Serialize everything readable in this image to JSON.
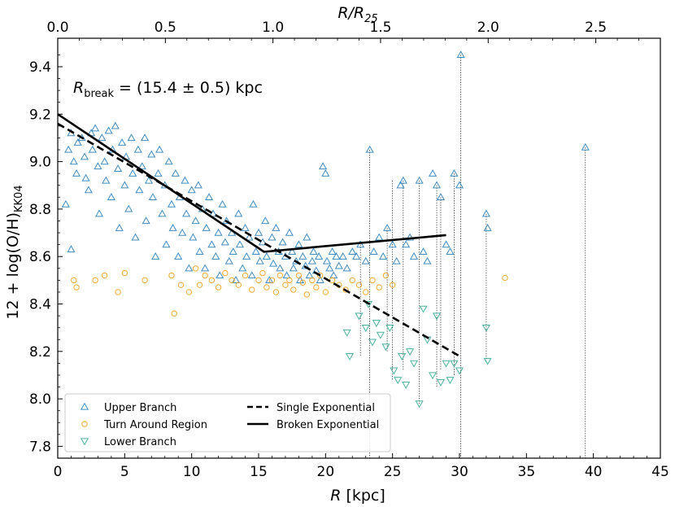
{
  "chart_data": {
    "type": "scatter",
    "xlabel_main": "R",
    "xlabel_unit": " [kpc]",
    "xlabel_top_main": "R/R",
    "xlabel_top_sub": "25",
    "ylabel_main": "12 + log(O/H)",
    "ylabel_sub": "KK04",
    "annotation_main": "R",
    "annotation_sub": "break",
    "annotation_value": " = (15.4 ± 0.5) kpc",
    "xlim": [
      0,
      45
    ],
    "ylim": [
      7.75,
      9.52
    ],
    "top_xlim": [
      0,
      2.8
    ],
    "x_ticks": [
      0,
      5,
      10,
      15,
      20,
      25,
      30,
      35,
      40,
      45
    ],
    "x_tick_labels": [
      "0",
      "5",
      "10",
      "15",
      "20",
      "25",
      "30",
      "35",
      "40",
      "45"
    ],
    "y_ticks": [
      7.8,
      8.0,
      8.2,
      8.4,
      8.6,
      8.8,
      9.0,
      9.2,
      9.4
    ],
    "y_tick_labels": [
      "7.8",
      "8.0",
      "8.2",
      "8.4",
      "8.6",
      "8.8",
      "9.0",
      "9.2",
      "9.4"
    ],
    "top_ticks": [
      0.0,
      0.5,
      1.0,
      1.5,
      2.0,
      2.5
    ],
    "top_tick_labels": [
      "0.0",
      "0.5",
      "1.0",
      "1.5",
      "2.0",
      "2.5"
    ],
    "colors": {
      "upper": "#1f77b4",
      "turn": "#f0a020",
      "lower": "#2ca58d",
      "line": "#000000"
    },
    "series": [
      {
        "name": "Upper Branch",
        "marker": "triangle-up",
        "points": [
          [
            0.6,
            8.82
          ],
          [
            0.8,
            9.05
          ],
          [
            1.0,
            8.63
          ],
          [
            1.0,
            9.12
          ],
          [
            1.2,
            9.0
          ],
          [
            1.4,
            8.95
          ],
          [
            1.5,
            9.08
          ],
          [
            1.8,
            9.1
          ],
          [
            2.0,
            9.02
          ],
          [
            2.1,
            8.93
          ],
          [
            2.3,
            8.88
          ],
          [
            2.5,
            9.12
          ],
          [
            2.6,
            9.05
          ],
          [
            2.8,
            9.14
          ],
          [
            3.0,
            8.98
          ],
          [
            3.1,
            8.78
          ],
          [
            3.3,
            9.1
          ],
          [
            3.5,
            9.0
          ],
          [
            3.6,
            8.92
          ],
          [
            3.8,
            9.13
          ],
          [
            4.0,
            8.85
          ],
          [
            4.1,
            9.05
          ],
          [
            4.3,
            9.15
          ],
          [
            4.5,
            8.97
          ],
          [
            4.6,
            8.72
          ],
          [
            4.8,
            9.08
          ],
          [
            5.0,
            8.9
          ],
          [
            5.1,
            9.02
          ],
          [
            5.3,
            8.8
          ],
          [
            5.5,
            9.1
          ],
          [
            5.6,
            8.95
          ],
          [
            5.8,
            8.68
          ],
          [
            6.0,
            9.05
          ],
          [
            6.1,
            8.88
          ],
          [
            6.3,
            8.98
          ],
          [
            6.5,
            9.1
          ],
          [
            6.6,
            8.75
          ],
          [
            6.8,
            8.92
          ],
          [
            7.0,
            9.03
          ],
          [
            7.1,
            8.85
          ],
          [
            7.3,
            8.6
          ],
          [
            7.5,
            8.95
          ],
          [
            7.6,
            9.05
          ],
          [
            7.8,
            8.78
          ],
          [
            8.0,
            8.9
          ],
          [
            8.1,
            8.65
          ],
          [
            8.3,
            9.0
          ],
          [
            8.5,
            8.82
          ],
          [
            8.6,
            8.72
          ],
          [
            8.8,
            8.95
          ],
          [
            9.0,
            8.6
          ],
          [
            9.1,
            8.85
          ],
          [
            9.3,
            8.7
          ],
          [
            9.5,
            8.92
          ],
          [
            9.6,
            8.78
          ],
          [
            9.8,
            8.55
          ],
          [
            10.0,
            8.88
          ],
          [
            10.1,
            8.68
          ],
          [
            10.3,
            8.75
          ],
          [
            10.5,
            8.9
          ],
          [
            10.6,
            8.62
          ],
          [
            10.8,
            8.8
          ],
          [
            11.0,
            8.55
          ],
          [
            11.1,
            8.72
          ],
          [
            11.3,
            8.85
          ],
          [
            11.5,
            8.65
          ],
          [
            11.6,
            8.78
          ],
          [
            11.8,
            8.6
          ],
          [
            12.0,
            8.7
          ],
          [
            12.1,
            8.52
          ],
          [
            12.3,
            8.82
          ],
          [
            12.5,
            8.66
          ],
          [
            12.6,
            8.75
          ],
          [
            12.8,
            8.58
          ],
          [
            13.0,
            8.7
          ],
          [
            13.1,
            8.62
          ],
          [
            13.3,
            8.5
          ],
          [
            13.5,
            8.78
          ],
          [
            13.6,
            8.65
          ],
          [
            13.8,
            8.55
          ],
          [
            14.0,
            8.72
          ],
          [
            14.1,
            8.6
          ],
          [
            14.3,
            8.68
          ],
          [
            14.5,
            8.52
          ],
          [
            14.6,
            8.82
          ],
          [
            14.8,
            8.62
          ],
          [
            15.0,
            8.7
          ],
          [
            15.1,
            8.58
          ],
          [
            15.3,
            8.66
          ],
          [
            15.5,
            8.75
          ],
          [
            15.6,
            8.6
          ],
          [
            15.8,
            8.5
          ],
          [
            16.0,
            8.68
          ],
          [
            16.1,
            8.57
          ],
          [
            16.3,
            8.72
          ],
          [
            16.5,
            8.62
          ],
          [
            16.6,
            8.55
          ],
          [
            16.8,
            8.66
          ],
          [
            17.0,
            8.6
          ],
          [
            17.1,
            8.52
          ],
          [
            17.3,
            8.7
          ],
          [
            17.5,
            8.62
          ],
          [
            17.6,
            8.55
          ],
          [
            17.8,
            8.58
          ],
          [
            18.0,
            8.65
          ],
          [
            18.1,
            8.5
          ],
          [
            18.3,
            8.6
          ],
          [
            18.5,
            8.56
          ],
          [
            18.6,
            8.68
          ],
          [
            18.8,
            8.52
          ],
          [
            19.0,
            8.58
          ],
          [
            19.1,
            8.62
          ],
          [
            19.3,
            8.54
          ],
          [
            19.5,
            8.6
          ],
          [
            19.6,
            8.5
          ],
          [
            19.8,
            8.98
          ],
          [
            20.0,
            8.95
          ],
          [
            20.1,
            8.58
          ],
          [
            20.3,
            8.55
          ],
          [
            20.5,
            8.62
          ],
          [
            20.6,
            8.52
          ],
          [
            20.8,
            8.6
          ],
          [
            21.0,
            8.56
          ],
          [
            21.3,
            8.6
          ],
          [
            21.6,
            8.55
          ],
          [
            22.0,
            8.62
          ],
          [
            22.3,
            8.6
          ],
          [
            22.6,
            8.65
          ],
          [
            23.0,
            8.58
          ],
          [
            23.3,
            9.05
          ],
          [
            23.6,
            8.62
          ],
          [
            24.0,
            8.68
          ],
          [
            24.3,
            8.6
          ],
          [
            24.6,
            8.72
          ],
          [
            25.0,
            8.65
          ],
          [
            25.3,
            8.58
          ],
          [
            25.6,
            8.9
          ],
          [
            25.8,
            8.92
          ],
          [
            26.0,
            8.65
          ],
          [
            26.3,
            8.68
          ],
          [
            26.6,
            8.6
          ],
          [
            27.0,
            8.92
          ],
          [
            27.3,
            8.62
          ],
          [
            27.6,
            8.58
          ],
          [
            28.0,
            8.95
          ],
          [
            28.3,
            8.9
          ],
          [
            28.6,
            8.85
          ],
          [
            29.0,
            8.65
          ],
          [
            29.3,
            8.62
          ],
          [
            29.6,
            8.95
          ],
          [
            30.0,
            8.9
          ],
          [
            30.1,
            9.45
          ],
          [
            32.0,
            8.78
          ],
          [
            32.1,
            8.72
          ],
          [
            39.4,
            9.06
          ]
        ]
      },
      {
        "name": "Turn Around Region",
        "marker": "circle",
        "points": [
          [
            1.2,
            8.5
          ],
          [
            1.4,
            8.47
          ],
          [
            2.8,
            8.5
          ],
          [
            3.5,
            8.52
          ],
          [
            4.5,
            8.45
          ],
          [
            5.0,
            8.53
          ],
          [
            6.5,
            8.5
          ],
          [
            8.5,
            8.52
          ],
          [
            8.7,
            8.36
          ],
          [
            9.2,
            8.48
          ],
          [
            9.8,
            8.45
          ],
          [
            10.3,
            8.55
          ],
          [
            10.6,
            8.48
          ],
          [
            11.0,
            8.52
          ],
          [
            11.5,
            8.5
          ],
          [
            12.0,
            8.47
          ],
          [
            12.5,
            8.53
          ],
          [
            13.0,
            8.5
          ],
          [
            13.5,
            8.48
          ],
          [
            14.0,
            8.52
          ],
          [
            14.5,
            8.46
          ],
          [
            15.0,
            8.5
          ],
          [
            15.3,
            8.53
          ],
          [
            15.6,
            8.47
          ],
          [
            16.0,
            8.5
          ],
          [
            16.3,
            8.45
          ],
          [
            16.6,
            8.52
          ],
          [
            17.0,
            8.48
          ],
          [
            17.3,
            8.5
          ],
          [
            17.6,
            8.46
          ],
          [
            18.0,
            8.52
          ],
          [
            18.3,
            8.49
          ],
          [
            18.6,
            8.44
          ],
          [
            19.0,
            8.5
          ],
          [
            19.3,
            8.47
          ],
          [
            19.6,
            8.52
          ],
          [
            20.0,
            8.45
          ],
          [
            20.5,
            8.5
          ],
          [
            21.0,
            8.48
          ],
          [
            21.5,
            8.46
          ],
          [
            22.0,
            8.5
          ],
          [
            22.5,
            8.48
          ],
          [
            23.0,
            8.45
          ],
          [
            23.5,
            8.5
          ],
          [
            24.0,
            8.47
          ],
          [
            24.5,
            8.52
          ],
          [
            25.0,
            8.48
          ],
          [
            33.4,
            8.51
          ]
        ]
      },
      {
        "name": "Lower Branch",
        "marker": "triangle-down",
        "points": [
          [
            21.6,
            8.28
          ],
          [
            21.8,
            8.18
          ],
          [
            22.5,
            8.35
          ],
          [
            23.0,
            8.3
          ],
          [
            23.2,
            8.4
          ],
          [
            23.5,
            8.24
          ],
          [
            23.8,
            8.32
          ],
          [
            24.1,
            8.27
          ],
          [
            24.5,
            8.22
          ],
          [
            24.8,
            8.3
          ],
          [
            25.1,
            8.12
          ],
          [
            25.4,
            8.08
          ],
          [
            25.7,
            8.18
          ],
          [
            26.0,
            8.06
          ],
          [
            26.3,
            8.2
          ],
          [
            26.6,
            8.15
          ],
          [
            27.0,
            7.98
          ],
          [
            27.3,
            8.38
          ],
          [
            27.6,
            8.25
          ],
          [
            28.0,
            8.1
          ],
          [
            28.3,
            8.35
          ],
          [
            28.6,
            8.07
          ],
          [
            29.0,
            8.15
          ],
          [
            29.3,
            8.08
          ],
          [
            29.6,
            8.15
          ],
          [
            30.0,
            8.12
          ],
          [
            32.0,
            8.3
          ],
          [
            32.1,
            8.16
          ]
        ]
      }
    ],
    "lines": [
      {
        "name": "Single Exponential",
        "style": "dashed",
        "points": [
          [
            0,
            9.16
          ],
          [
            30,
            8.18
          ]
        ]
      },
      {
        "name": "Broken Exponential",
        "style": "solid",
        "points": [
          [
            0,
            9.2
          ],
          [
            15.4,
            8.62
          ],
          [
            29,
            8.69
          ]
        ]
      }
    ],
    "droplines": [
      [
        23.3,
        9.05,
        7.75
      ],
      [
        30.1,
        9.45,
        7.75
      ],
      [
        39.4,
        9.06,
        7.75
      ],
      [
        25.0,
        8.92,
        8.08
      ],
      [
        25.8,
        8.92,
        8.12
      ],
      [
        27.0,
        8.92,
        7.98
      ],
      [
        28.3,
        8.9,
        8.05
      ],
      [
        29.6,
        8.95,
        8.1
      ],
      [
        32.0,
        8.78,
        8.16
      ],
      [
        24.6,
        8.72,
        8.2
      ],
      [
        28.6,
        8.85,
        8.12
      ],
      [
        22.6,
        8.65,
        8.18
      ]
    ],
    "legend": [
      {
        "label": "Upper Branch",
        "kind": "upper"
      },
      {
        "label": "Turn Around Region",
        "kind": "turn"
      },
      {
        "label": "Lower Branch",
        "kind": "lower"
      },
      {
        "label": "Single Exponential",
        "kind": "dashed"
      },
      {
        "label": "Broken Exponential",
        "kind": "solid"
      }
    ],
    "legend_position": "bottom-left"
  }
}
